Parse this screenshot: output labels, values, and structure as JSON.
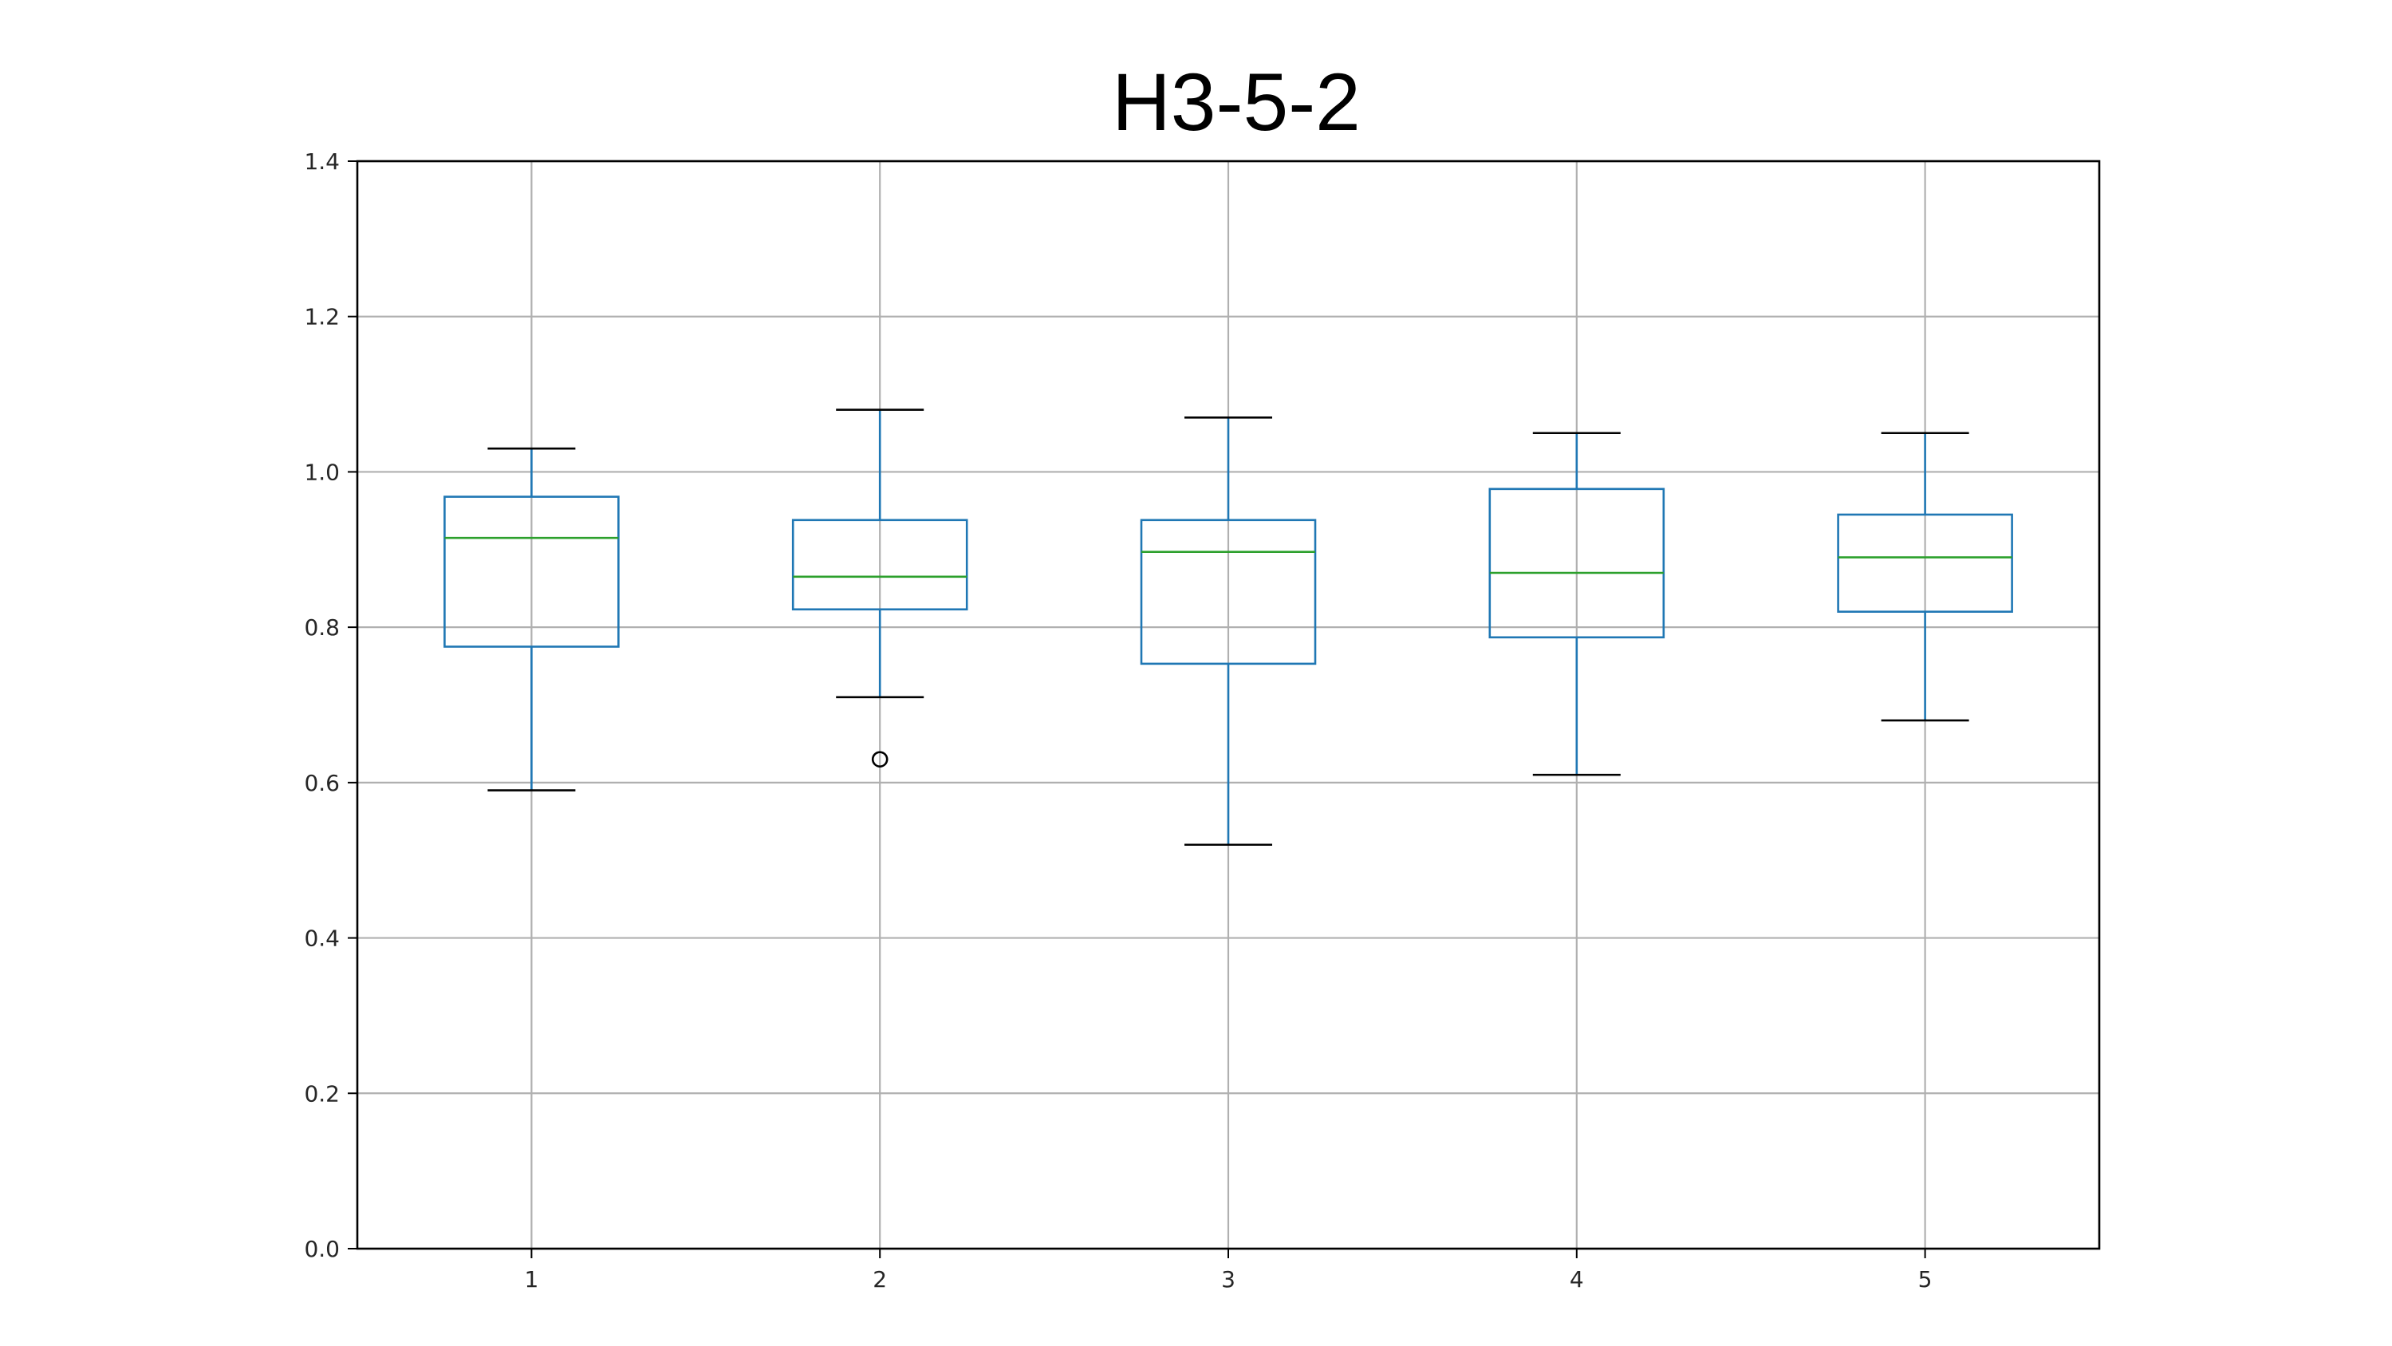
{
  "chart_data": {
    "type": "box",
    "title": "H3-5-2",
    "xlabel": "",
    "ylabel": "",
    "categories": [
      "1",
      "2",
      "3",
      "4",
      "5"
    ],
    "ylim": [
      0.0,
      1.4
    ],
    "yticks": [
      "0.0",
      "0.2",
      "0.4",
      "0.6",
      "0.8",
      "1.0",
      "1.2",
      "1.4"
    ],
    "grid": true,
    "legend": "none",
    "boxes": [
      {
        "category": "1",
        "whisker_low": 0.59,
        "q1": 0.775,
        "median": 0.915,
        "q3": 0.968,
        "whisker_high": 1.03,
        "outliers": []
      },
      {
        "category": "2",
        "whisker_low": 0.71,
        "q1": 0.823,
        "median": 0.865,
        "q3": 0.938,
        "whisker_high": 1.08,
        "outliers": [
          0.63
        ]
      },
      {
        "category": "3",
        "whisker_low": 0.52,
        "q1": 0.753,
        "median": 0.897,
        "q3": 0.938,
        "whisker_high": 1.07,
        "outliers": []
      },
      {
        "category": "4",
        "whisker_low": 0.61,
        "q1": 0.787,
        "median": 0.87,
        "q3": 0.978,
        "whisker_high": 1.05,
        "outliers": []
      },
      {
        "category": "5",
        "whisker_low": 0.68,
        "q1": 0.82,
        "median": 0.89,
        "q3": 0.945,
        "whisker_high": 1.05,
        "outliers": []
      }
    ],
    "colors": {
      "box": "#1f77b4",
      "median": "#2ca02c",
      "whisker_cap": "#000000",
      "outlier": "#000000",
      "grid": "#b0b0b0",
      "frame": "#000000"
    }
  }
}
